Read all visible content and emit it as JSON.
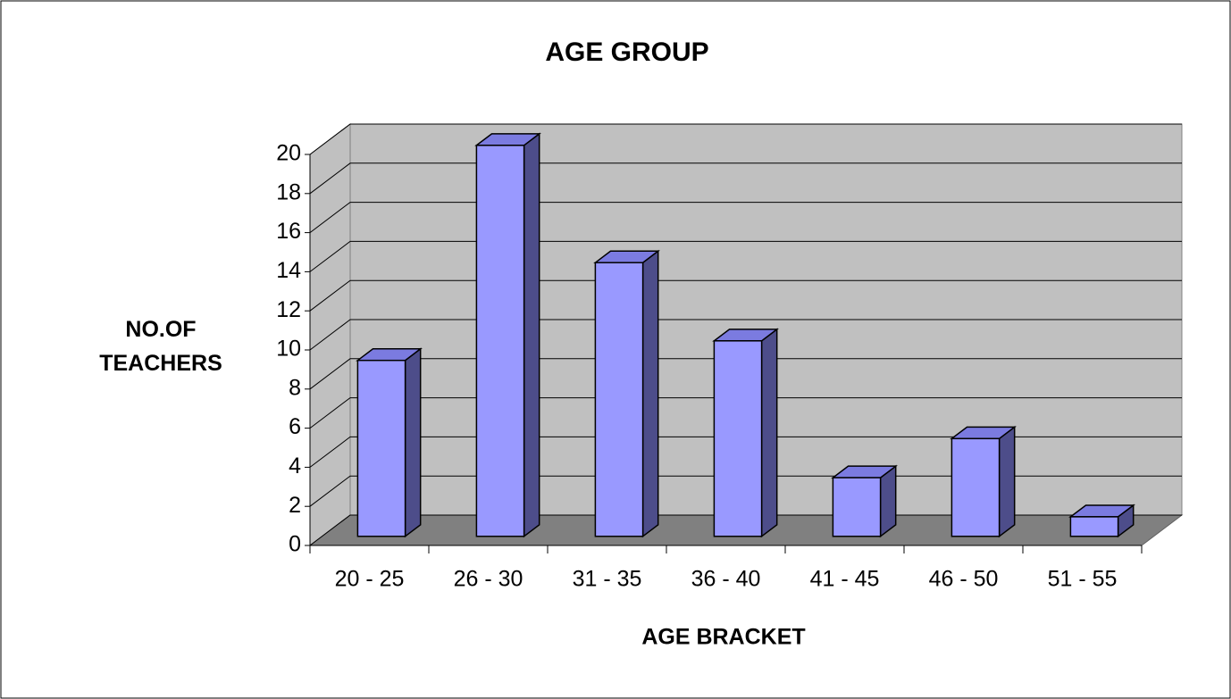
{
  "chart_data": {
    "type": "bar",
    "title": "AGE GROUP",
    "x_label": "AGE BRACKET",
    "y_label": "NO.OF TEACHERS",
    "categories": [
      "20 - 25",
      "26 - 30",
      "31 - 35",
      "36 - 40",
      "41 - 45",
      "46 - 50",
      "51 - 55"
    ],
    "values": [
      9,
      20,
      14,
      10,
      3,
      5,
      1
    ],
    "color": "#9999ff",
    "ylim": [
      0,
      20
    ],
    "yticks": [
      0,
      2,
      4,
      6,
      8,
      10,
      12,
      14,
      16,
      18,
      20
    ],
    "grid": true
  }
}
